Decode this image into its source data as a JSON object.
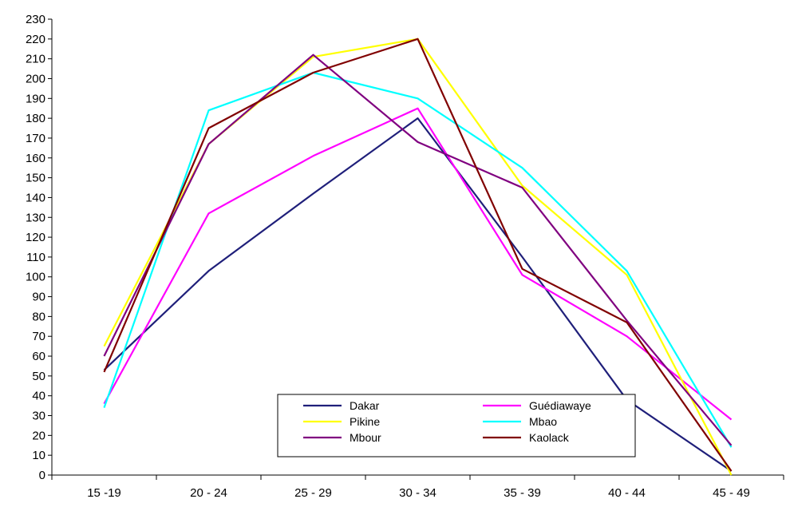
{
  "chart_data": {
    "type": "line",
    "categories": [
      "15 -19",
      "20 - 24",
      "25 - 29",
      "30 - 34",
      "35 - 39",
      "40 - 44",
      "45 - 49"
    ],
    "ylim": [
      0,
      230
    ],
    "yticks": [
      0,
      10,
      20,
      30,
      40,
      50,
      60,
      70,
      80,
      90,
      100,
      110,
      120,
      130,
      140,
      150,
      160,
      170,
      180,
      190,
      200,
      210,
      220,
      230
    ],
    "grid": false,
    "legend_position": "bottom-center",
    "series": [
      {
        "name": "Dakar",
        "color": "#1F1F7A",
        "values": [
          53,
          103,
          142,
          180,
          110,
          38,
          2
        ]
      },
      {
        "name": "Guédiawaye",
        "color": "#FF00FF",
        "values": [
          36,
          132,
          161,
          185,
          101,
          70,
          28
        ]
      },
      {
        "name": "Pikine",
        "color": "#FFFF00",
        "values": [
          65,
          167,
          211,
          220,
          146,
          101,
          0
        ]
      },
      {
        "name": "Mbao",
        "color": "#00FFFF",
        "values": [
          34,
          184,
          203,
          190,
          155,
          103,
          14
        ]
      },
      {
        "name": "Mbour",
        "color": "#800080",
        "values": [
          60,
          167,
          212,
          168,
          145,
          78,
          15
        ]
      },
      {
        "name": "Kaolack",
        "color": "#800000",
        "values": [
          52,
          175,
          203,
          220,
          104,
          77,
          2
        ]
      }
    ]
  }
}
